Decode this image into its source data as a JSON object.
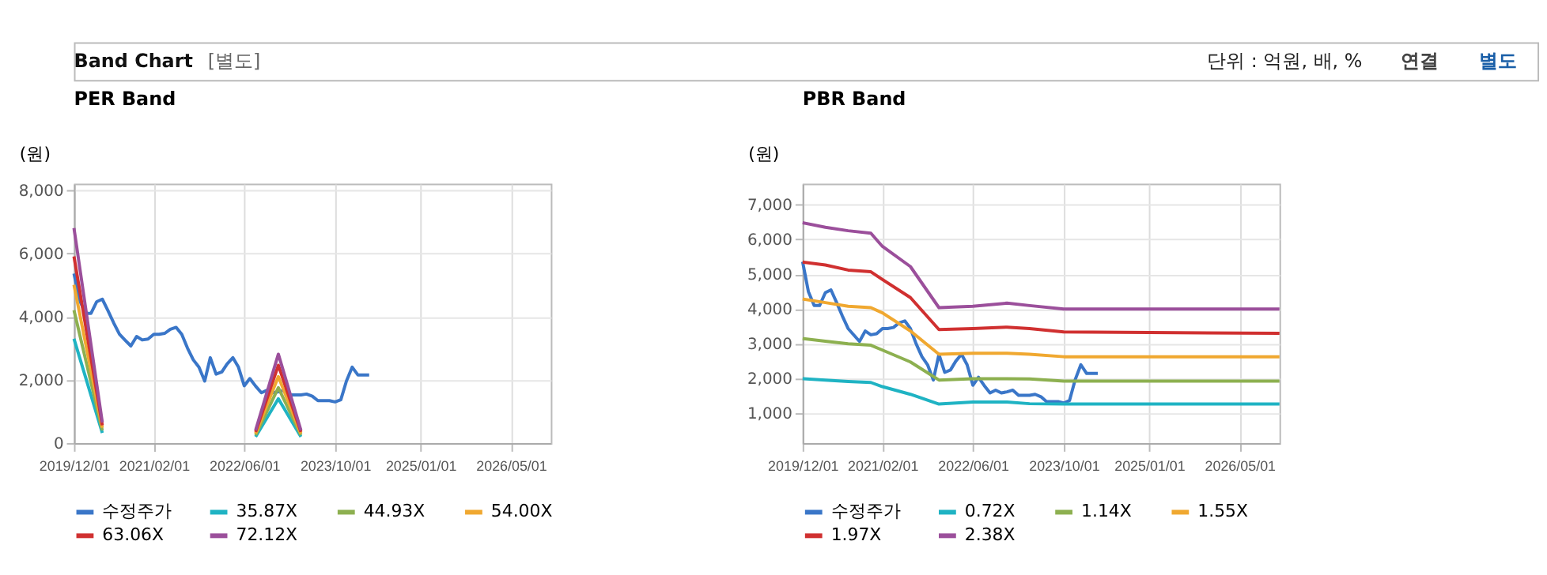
{
  "chart_data": [
    {
      "type": "line",
      "title": "PER Band",
      "ylabel": "(원)",
      "annotations": [
        "Band Chart",
        "[별도]",
        "단위 : 억원, 배, %",
        "연결",
        "별도"
      ],
      "xlim": [
        "2019-12-01",
        "2026-12-01"
      ],
      "xticks": [
        {
          "value": "2019-12-01",
          "label": "2019/12/01"
        },
        {
          "value": "2021-02-01",
          "label": "2021/02/01"
        },
        {
          "value": "2022-06-01",
          "label": "2022/06/01"
        },
        {
          "value": "2023-10-01",
          "label": "2023/10/01"
        },
        {
          "value": "2025-01-01",
          "label": "2025/01/01"
        },
        {
          "value": "2026-05-01",
          "label": "2026/05/01"
        }
      ],
      "ylim": [
        0,
        8200
      ],
      "yticks": [
        {
          "value": 0,
          "label": "0"
        },
        {
          "value": 2000,
          "label": "2,000"
        },
        {
          "value": 4000,
          "label": "4,000"
        },
        {
          "value": 6000,
          "label": "6,000"
        },
        {
          "value": 8000,
          "label": "8,000"
        }
      ],
      "grid": true,
      "legend": "bottom",
      "series": [
        {
          "name": "수정주가",
          "color": "#3a76c8",
          "x": [
            "2019-12",
            "2020-01",
            "2020-02",
            "2020-03",
            "2020-04",
            "2020-05",
            "2020-06",
            "2020-07",
            "2020-08",
            "2020-09",
            "2020-10",
            "2020-11",
            "2020-12",
            "2021-01",
            "2021-02",
            "2021-03",
            "2021-04",
            "2021-05",
            "2021-06",
            "2021-07",
            "2021-08",
            "2021-09",
            "2021-10",
            "2021-11",
            "2021-12",
            "2022-01",
            "2022-02",
            "2022-03",
            "2022-04",
            "2022-05",
            "2022-06",
            "2022-07",
            "2022-08",
            "2022-09",
            "2022-10",
            "2022-11",
            "2022-12",
            "2023-01",
            "2023-02",
            "2023-03",
            "2023-04",
            "2023-05",
            "2023-06",
            "2023-07",
            "2023-08",
            "2023-09",
            "2023-10",
            "2023-11",
            "2023-12",
            "2024-01",
            "2024-02",
            "2024-03",
            "2024-04"
          ],
          "values": [
            5360,
            4500,
            4100,
            4100,
            4470,
            4550,
            4180,
            3800,
            3440,
            3250,
            3070,
            3370,
            3260,
            3290,
            3440,
            3440,
            3470,
            3600,
            3660,
            3440,
            3000,
            2630,
            2400,
            1960,
            2700,
            2180,
            2250,
            2500,
            2700,
            2400,
            1810,
            2040,
            1800,
            1590,
            1670,
            1590,
            1620,
            1670,
            1520,
            1520,
            1520,
            1550,
            1480,
            1340,
            1340,
            1340,
            1300,
            1370,
            1960,
            2400,
            2150,
            2150,
            2150
          ]
        },
        {
          "name": "35.87X",
          "color": "#1fb3c3",
          "x": [
            "2019-12",
            "2020-05",
            "2021-06",
            "2022-08",
            "2022-12",
            "2023-04"
          ],
          "values": [
            3300,
            320,
            null,
            200,
            1400,
            200
          ]
        },
        {
          "name": "44.93X",
          "color": "#8db050",
          "x": [
            "2019-12",
            "2020-05",
            "2021-06",
            "2022-08",
            "2022-12",
            "2023-04"
          ],
          "values": [
            4200,
            400,
            null,
            250,
            1750,
            250
          ]
        },
        {
          "name": "54.00X",
          "color": "#f0a830",
          "x": [
            "2019-12",
            "2020-05",
            "2021-06",
            "2022-08",
            "2022-12",
            "2023-04"
          ],
          "values": [
            5000,
            480,
            null,
            300,
            2100,
            300
          ]
        },
        {
          "name": "63.06X",
          "color": "#d03030",
          "x": [
            "2019-12",
            "2020-05",
            "2021-06",
            "2022-08",
            "2022-12",
            "2023-04"
          ],
          "values": [
            5900,
            560,
            null,
            350,
            2460,
            350
          ]
        },
        {
          "name": "72.12X",
          "color": "#9b4f9b",
          "x": [
            "2019-12",
            "2020-05",
            "2021-06",
            "2022-08",
            "2022-12",
            "2023-04"
          ],
          "values": [
            6800,
            650,
            null,
            400,
            2810,
            400
          ]
        }
      ]
    },
    {
      "type": "line",
      "title": "PBR Band",
      "ylabel": "(원)",
      "xlim": [
        "2019-12-01",
        "2026-12-01"
      ],
      "xticks": [
        {
          "value": "2019-12-01",
          "label": "2019/12/01"
        },
        {
          "value": "2021-02-01",
          "label": "2021/02/01"
        },
        {
          "value": "2022-06-01",
          "label": "2022/06/01"
        },
        {
          "value": "2023-10-01",
          "label": "2023/10/01"
        },
        {
          "value": "2025-01-01",
          "label": "2025/01/01"
        },
        {
          "value": "2026-05-01",
          "label": "2026/05/01"
        }
      ],
      "ylim": [
        150,
        7600
      ],
      "yticks": [
        {
          "value": 1000,
          "label": "1,000"
        },
        {
          "value": 2000,
          "label": "2,000"
        },
        {
          "value": 3000,
          "label": "3,000"
        },
        {
          "value": 4000,
          "label": "4,000"
        },
        {
          "value": 5000,
          "label": "5,000"
        },
        {
          "value": 6000,
          "label": "6,000"
        },
        {
          "value": 7000,
          "label": "7,000"
        }
      ],
      "grid": true,
      "legend": "bottom",
      "series": [
        {
          "name": "수정주가",
          "color": "#3a76c8",
          "x": [
            "2019-12",
            "2020-01",
            "2020-02",
            "2020-03",
            "2020-04",
            "2020-05",
            "2020-06",
            "2020-07",
            "2020-08",
            "2020-09",
            "2020-10",
            "2020-11",
            "2020-12",
            "2021-01",
            "2021-02",
            "2021-03",
            "2021-04",
            "2021-05",
            "2021-06",
            "2021-07",
            "2021-08",
            "2021-09",
            "2021-10",
            "2021-11",
            "2021-12",
            "2022-01",
            "2022-02",
            "2022-03",
            "2022-04",
            "2022-05",
            "2022-06",
            "2022-07",
            "2022-08",
            "2022-09",
            "2022-10",
            "2022-11",
            "2022-12",
            "2023-01",
            "2023-02",
            "2023-03",
            "2023-04",
            "2023-05",
            "2023-06",
            "2023-07",
            "2023-08",
            "2023-09",
            "2023-10",
            "2023-11",
            "2023-12",
            "2024-01",
            "2024-02",
            "2024-03",
            "2024-04"
          ],
          "values": [
            5360,
            4500,
            4100,
            4100,
            4470,
            4550,
            4180,
            3800,
            3440,
            3250,
            3070,
            3370,
            3260,
            3290,
            3440,
            3440,
            3470,
            3600,
            3660,
            3440,
            3000,
            2630,
            2400,
            1960,
            2700,
            2180,
            2250,
            2500,
            2700,
            2400,
            1810,
            2040,
            1800,
            1590,
            1670,
            1590,
            1620,
            1670,
            1520,
            1520,
            1520,
            1550,
            1480,
            1340,
            1340,
            1340,
            1300,
            1370,
            1960,
            2400,
            2150,
            2150,
            2150
          ]
        },
        {
          "name": "0.72X",
          "color": "#1fb3c3",
          "x": [
            "2019-12",
            "2020-04",
            "2020-08",
            "2020-12",
            "2021-02",
            "2021-07",
            "2021-12",
            "2022-06",
            "2022-12",
            "2023-04",
            "2023-10",
            "2026-12"
          ],
          "values": [
            2000,
            1960,
            1920,
            1890,
            1770,
            1550,
            1270,
            1330,
            1330,
            1280,
            1270,
            1270
          ]
        },
        {
          "name": "1.14X",
          "color": "#8db050",
          "x": [
            "2019-12",
            "2020-04",
            "2020-08",
            "2020-12",
            "2021-02",
            "2021-07",
            "2021-12",
            "2022-06",
            "2022-12",
            "2023-04",
            "2023-10",
            "2026-12"
          ],
          "values": [
            3150,
            3075,
            3000,
            2960,
            2820,
            2480,
            1960,
            2000,
            2000,
            1990,
            1930,
            1930
          ]
        },
        {
          "name": "1.55X",
          "color": "#f0a830",
          "x": [
            "2019-12",
            "2020-04",
            "2020-08",
            "2020-12",
            "2021-02",
            "2021-07",
            "2021-12",
            "2022-06",
            "2022-12",
            "2023-04",
            "2023-10",
            "2026-12"
          ],
          "values": [
            4290,
            4185,
            4080,
            4040,
            3890,
            3370,
            2700,
            2730,
            2730,
            2700,
            2630,
            2630
          ]
        },
        {
          "name": "1.97X",
          "color": "#d03030",
          "x": [
            "2019-12",
            "2020-04",
            "2020-08",
            "2020-12",
            "2021-02",
            "2021-07",
            "2021-12",
            "2022-06",
            "2022-12",
            "2023-04",
            "2023-10",
            "2026-12"
          ],
          "values": [
            5350,
            5265,
            5120,
            5070,
            4850,
            4330,
            3410,
            3440,
            3480,
            3440,
            3340,
            3300
          ]
        },
        {
          "name": "2.38X",
          "color": "#9b4f9b",
          "x": [
            "2019-12",
            "2020-04",
            "2020-08",
            "2020-12",
            "2021-02",
            "2021-07",
            "2021-12",
            "2022-06",
            "2022-12",
            "2023-04",
            "2023-10",
            "2026-12"
          ],
          "values": [
            6480,
            6350,
            6250,
            6180,
            5800,
            5220,
            4040,
            4080,
            4170,
            4100,
            4000,
            4000
          ]
        }
      ]
    }
  ]
}
